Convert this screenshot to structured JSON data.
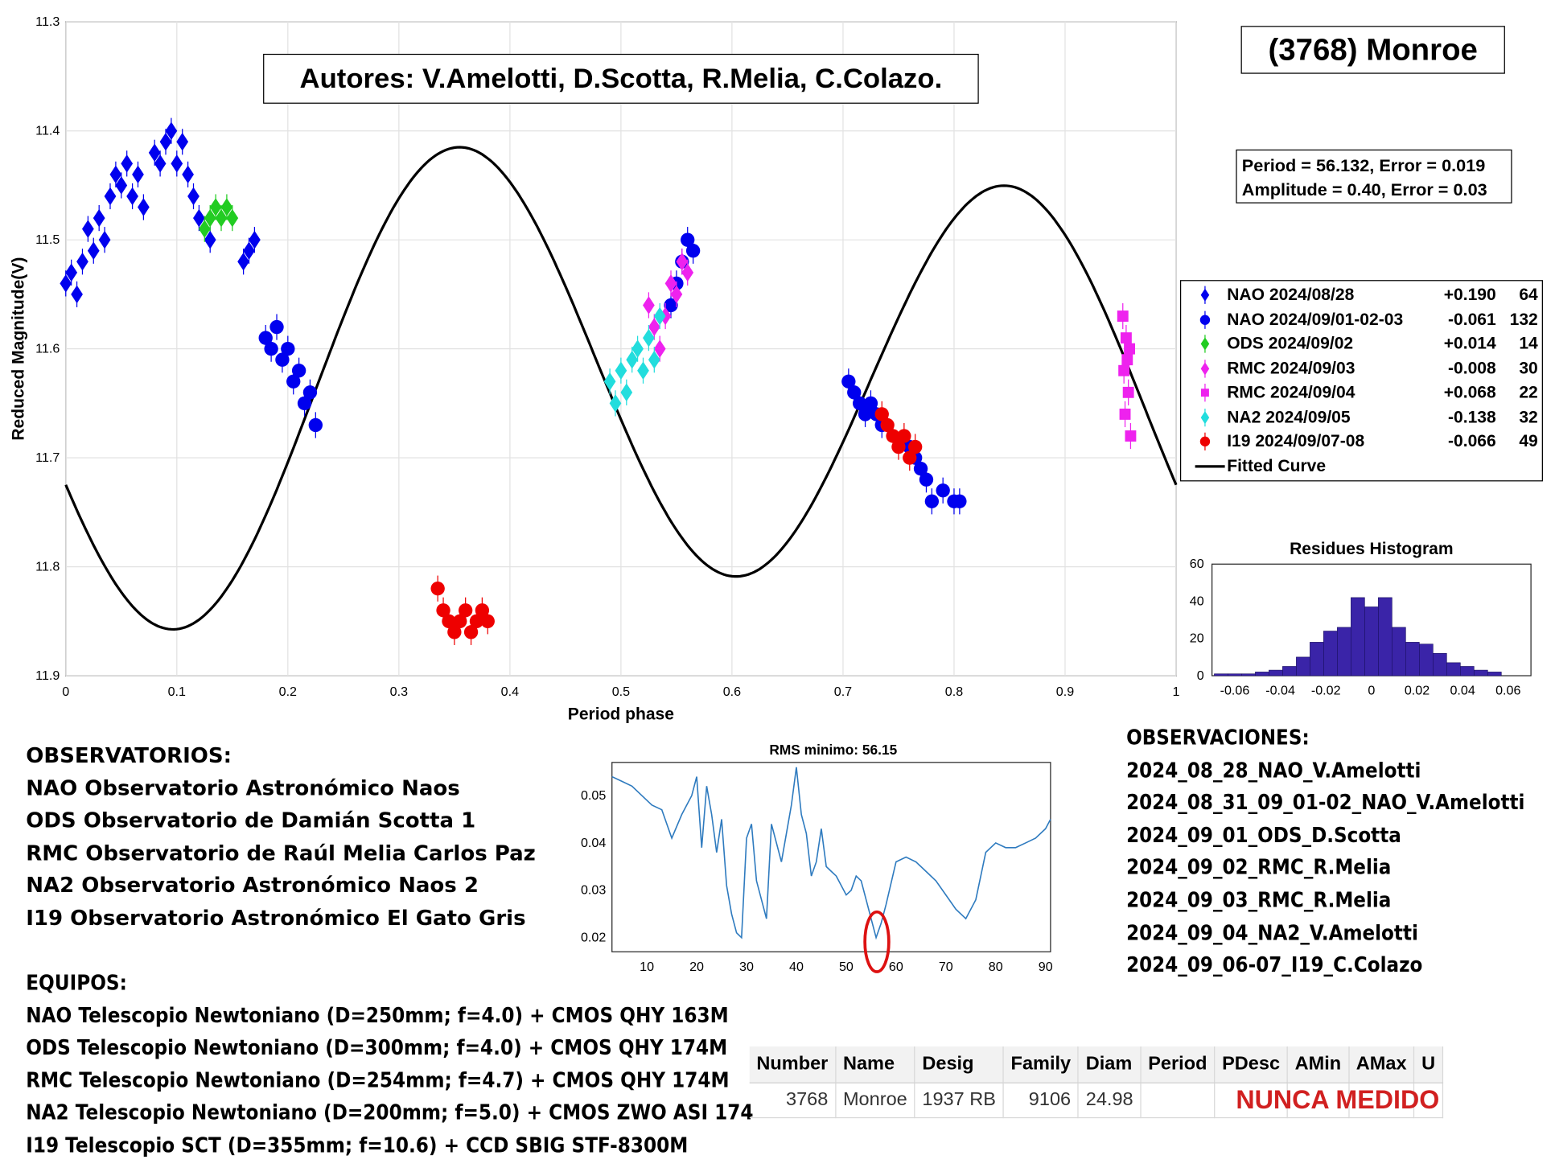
{
  "header": {
    "authors": "Autores: V.Amelotti, D.Scotta, R.Melia, C.Colazo.",
    "asteroid": "(3768) Monroe",
    "fit_period": "Period =  56.132, Error = 0.019",
    "fit_amplitude": "Amplitude = 0.40, Error = 0.03"
  },
  "colors": {
    "nao1": "#0000ee",
    "nao2": "#0000ee",
    "ods": "#22cc22",
    "rmc1": "#ee22ee",
    "rmc2": "#ee22ee",
    "na2": "#22dddd",
    "i19": "#ee0000",
    "fit": "#000000",
    "hist": "#3a24a8",
    "periodogram": "#2f7bbf",
    "minimum_marker": "#dd1111",
    "nunca": "#d12020"
  },
  "legend": [
    {
      "name": "NAO 2024/08/28",
      "offset": "+0.190",
      "n": "64",
      "marker": "diamond",
      "color": "#0000ee"
    },
    {
      "name": "NAO 2024/09/01-02-03",
      "offset": "-0.061",
      "n": "132",
      "marker": "circle",
      "color": "#0000ee"
    },
    {
      "name": "ODS 2024/09/02",
      "offset": "+0.014",
      "n": "14",
      "marker": "diamond",
      "color": "#22cc22"
    },
    {
      "name": "RMC 2024/09/03",
      "offset": "-0.008",
      "n": "30",
      "marker": "diamond",
      "color": "#ee22ee"
    },
    {
      "name": "RMC 2024/09/04",
      "offset": "+0.068",
      "n": "22",
      "marker": "square",
      "color": "#ee22ee"
    },
    {
      "name": "NA2 2024/09/05",
      "offset": "-0.138",
      "n": "32",
      "marker": "diamond",
      "color": "#22dddd"
    },
    {
      "name": "I19 2024/09/07-08",
      "offset": "-0.066",
      "n": "49",
      "marker": "circle",
      "color": "#ee0000"
    },
    {
      "name": "Fitted Curve",
      "offset": "",
      "n": "",
      "marker": "line",
      "color": "#000000"
    }
  ],
  "observatorios": {
    "title": "OBSERVATORIOS:",
    "items": [
      "NAO Observatorio Astronómico Naos",
      "ODS Observatorio de Damián Scotta 1",
      "RMC Observatorio de Raúl Melia Carlos Paz",
      "NA2 Observatorio Astronómico Naos 2",
      "I19 Observatorio Astronómico El Gato Gris"
    ]
  },
  "equipos": {
    "title": "EQUIPOS:",
    "items": [
      "NAO Telescopio Newtoniano (D=250mm; f=4.0) + CMOS QHY 163M",
      "ODS Telescopio Newtoniano (D=300mm; f=4.0) + CMOS QHY 174M",
      "RMC Telescopio Newtoniano (D=254mm; f=4.7) + CMOS QHY 174M",
      "NA2 Telescopio Newtoniano (D=200mm; f=5.0) + CMOS ZWO ASI 174",
      "I19 Telescopio SCT (D=355mm; f=10.6) + CCD SBIG STF-8300M"
    ]
  },
  "observaciones": {
    "title": "OBSERVACIONES:",
    "items": [
      "2024_08_28_NAO_V.Amelotti",
      "2024_08_31_09_01-02_NAO_V.Amelotti",
      "2024_09_01_ODS_D.Scotta",
      "2024_09_02_RMC_R.Melia",
      "2024_09_03_RMC_R.Melia",
      "2024_09_04_NA2_V.Amelotti",
      "2024_09_06-07_I19_C.Colazo"
    ]
  },
  "mpc_table": {
    "headers": [
      "Number",
      "Name",
      "Desig",
      "Family",
      "Diam",
      "Period",
      "PDesc",
      "AMin",
      "AMax",
      "U"
    ],
    "row": [
      "3768",
      "Monroe",
      "1937 RB",
      "9106",
      "24.98",
      "",
      "",
      "",
      "",
      ""
    ],
    "note": "NUNCA MEDIDO"
  },
  "chart_data": [
    {
      "type": "scatter",
      "title": "",
      "xlabel": "Period phase",
      "ylabel": "Reduced Magnitude(V)",
      "xlim": [
        0,
        1
      ],
      "ylim": [
        11.9,
        11.3
      ],
      "y_reversed": true,
      "xticks": [
        "0",
        "0.1",
        "0.2",
        "0.3",
        "0.4",
        "0.5",
        "0.6",
        "0.7",
        "0.8",
        "0.9",
        "1"
      ],
      "yticks": [
        "11.3",
        "11.4",
        "11.5",
        "11.6",
        "11.7",
        "11.8",
        "11.9"
      ],
      "grid": true,
      "legend_position": "right",
      "fitted_curve": {
        "mean": 11.633,
        "amp1": 0.2,
        "phi1": 0.1,
        "amp2": 0.03,
        "phi2": 0.0
      },
      "series": [
        {
          "name": "NAO 2024/08/28",
          "marker": "diamond",
          "color": "#0000ee",
          "x": [
            0.0,
            0.005,
            0.01,
            0.015,
            0.02,
            0.025,
            0.03,
            0.035,
            0.04,
            0.045,
            0.05,
            0.055,
            0.06,
            0.065,
            0.07,
            0.08,
            0.085,
            0.09,
            0.095,
            0.1,
            0.105,
            0.11,
            0.115,
            0.12,
            0.13,
            0.16,
            0.165,
            0.17
          ],
          "y": [
            11.54,
            11.53,
            11.55,
            11.52,
            11.49,
            11.51,
            11.48,
            11.5,
            11.46,
            11.44,
            11.45,
            11.43,
            11.46,
            11.44,
            11.47,
            11.42,
            11.43,
            11.41,
            11.4,
            11.43,
            11.41,
            11.44,
            11.46,
            11.48,
            11.5,
            11.52,
            11.51,
            11.5
          ]
        },
        {
          "name": "NAO 2024/09/01-02-03",
          "marker": "circle",
          "color": "#0000ee",
          "x": [
            0.18,
            0.185,
            0.19,
            0.195,
            0.2,
            0.205,
            0.21,
            0.215,
            0.22,
            0.225,
            0.545,
            0.55,
            0.555,
            0.56,
            0.565,
            0.705,
            0.71,
            0.715,
            0.72,
            0.725,
            0.73,
            0.735,
            0.76,
            0.765,
            0.77,
            0.775,
            0.78,
            0.79,
            0.8,
            0.805
          ],
          "y": [
            11.59,
            11.6,
            11.58,
            11.61,
            11.6,
            11.63,
            11.62,
            11.65,
            11.64,
            11.67,
            11.56,
            11.54,
            11.52,
            11.5,
            11.51,
            11.63,
            11.64,
            11.65,
            11.66,
            11.65,
            11.66,
            11.67,
            11.69,
            11.7,
            11.71,
            11.72,
            11.74,
            11.73,
            11.74,
            11.74
          ]
        },
        {
          "name": "ODS 2024/09/02",
          "marker": "diamond",
          "color": "#22cc22",
          "x": [
            0.125,
            0.13,
            0.135,
            0.14,
            0.145,
            0.15
          ],
          "y": [
            11.49,
            11.48,
            11.47,
            11.48,
            11.47,
            11.48
          ]
        },
        {
          "name": "RMC 2024/09/03",
          "marker": "diamond",
          "color": "#ee22ee",
          "x": [
            0.525,
            0.53,
            0.535,
            0.54,
            0.545,
            0.55,
            0.555,
            0.56
          ],
          "y": [
            11.56,
            11.58,
            11.6,
            11.57,
            11.54,
            11.55,
            11.52,
            11.53
          ]
        },
        {
          "name": "RMC 2024/09/04",
          "marker": "square",
          "color": "#ee22ee",
          "x": [
            0.952,
            0.955,
            0.958,
            0.953,
            0.956,
            0.957,
            0.954,
            0.959
          ],
          "y": [
            11.57,
            11.59,
            11.6,
            11.62,
            11.61,
            11.64,
            11.66,
            11.68
          ]
        },
        {
          "name": "NA2 2024/09/05",
          "marker": "diamond",
          "color": "#22dddd",
          "x": [
            0.49,
            0.495,
            0.5,
            0.505,
            0.51,
            0.515,
            0.52,
            0.525,
            0.53,
            0.535
          ],
          "y": [
            11.63,
            11.65,
            11.62,
            11.64,
            11.61,
            11.6,
            11.62,
            11.59,
            11.61,
            11.57
          ]
        },
        {
          "name": "I19 2024/09/07-08",
          "marker": "circle",
          "color": "#ee0000",
          "x": [
            0.335,
            0.34,
            0.345,
            0.35,
            0.355,
            0.36,
            0.365,
            0.37,
            0.375,
            0.38,
            0.735,
            0.74,
            0.745,
            0.75,
            0.755,
            0.76,
            0.765
          ],
          "y": [
            11.82,
            11.84,
            11.85,
            11.86,
            11.85,
            11.84,
            11.86,
            11.85,
            11.84,
            11.85,
            11.66,
            11.67,
            11.68,
            11.69,
            11.68,
            11.7,
            11.69
          ]
        }
      ]
    },
    {
      "type": "bar",
      "title": "Residues Histogram",
      "xlim": [
        -0.07,
        0.07
      ],
      "ylim": [
        0,
        60
      ],
      "xticks": [
        "-0.06",
        "-0.04",
        "-0.02",
        "0",
        "0.02",
        "0.04",
        "0.06"
      ],
      "yticks": [
        "0",
        "20",
        "40",
        "60"
      ],
      "bin_centers": [
        -0.066,
        -0.06,
        -0.054,
        -0.048,
        -0.042,
        -0.036,
        -0.03,
        -0.024,
        -0.018,
        -0.012,
        -0.006,
        0.0,
        0.006,
        0.012,
        0.018,
        0.024,
        0.03,
        0.036,
        0.042,
        0.048,
        0.054
      ],
      "counts": [
        1,
        1,
        1,
        2,
        3,
        5,
        10,
        18,
        24,
        26,
        42,
        37,
        42,
        26,
        18,
        17,
        12,
        7,
        5,
        3,
        2
      ]
    },
    {
      "type": "line",
      "title": "RMS minimo: 56.15",
      "xlim": [
        3,
        91
      ],
      "ylim": [
        0.017,
        0.057
      ],
      "xticks": [
        "10",
        "20",
        "30",
        "40",
        "50",
        "60",
        "70",
        "80",
        "90"
      ],
      "yticks": [
        "0.02",
        "0.03",
        "0.04",
        "0.05"
      ],
      "minimum_x": 56.15,
      "x": [
        3,
        5,
        7,
        9,
        11,
        13,
        15,
        17,
        19,
        20,
        21,
        22,
        23,
        24,
        25,
        26,
        27,
        28,
        29,
        30,
        31,
        32,
        33,
        34,
        35,
        36,
        37,
        38,
        39,
        40,
        41,
        42,
        43,
        44,
        45,
        46,
        47,
        48,
        50,
        51,
        52,
        53,
        54,
        55,
        56,
        57,
        58,
        60,
        62,
        64,
        66,
        68,
        70,
        72,
        74,
        76,
        78,
        80,
        82,
        84,
        86,
        88,
        90,
        91
      ],
      "y": [
        0.054,
        0.053,
        0.052,
        0.05,
        0.048,
        0.047,
        0.041,
        0.046,
        0.05,
        0.054,
        0.039,
        0.052,
        0.046,
        0.038,
        0.045,
        0.031,
        0.025,
        0.021,
        0.02,
        0.041,
        0.044,
        0.032,
        0.028,
        0.024,
        0.044,
        0.04,
        0.036,
        0.042,
        0.048,
        0.056,
        0.046,
        0.042,
        0.033,
        0.036,
        0.043,
        0.035,
        0.034,
        0.033,
        0.029,
        0.03,
        0.033,
        0.032,
        0.028,
        0.024,
        0.02,
        0.023,
        0.027,
        0.036,
        0.037,
        0.036,
        0.034,
        0.032,
        0.029,
        0.026,
        0.024,
        0.028,
        0.038,
        0.04,
        0.039,
        0.039,
        0.04,
        0.041,
        0.043,
        0.045
      ]
    }
  ]
}
